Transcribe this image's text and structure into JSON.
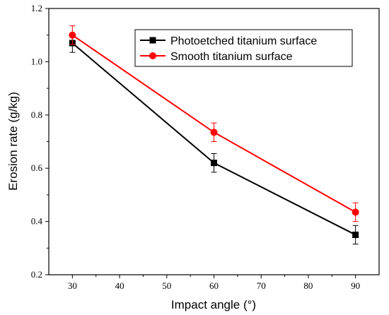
{
  "chart_data": {
    "type": "line",
    "xlabel": "Impact angle (°)",
    "ylabel": "Erosion rate (g/kg)",
    "xlim": [
      25,
      95
    ],
    "ylim": [
      0.2,
      1.2
    ],
    "x_ticks": [
      30,
      40,
      50,
      60,
      70,
      80,
      90
    ],
    "y_ticks": [
      0.2,
      0.4,
      0.6,
      0.8,
      1.0,
      1.2
    ],
    "y_tick_labels": [
      "0.2",
      "0.4",
      "0.6",
      "0.8",
      "1.0",
      "1.2"
    ],
    "grid": false,
    "legend_position": "top-right",
    "series": [
      {
        "name": "Photoetched titanium surface",
        "color": "#000000",
        "marker": "square",
        "x": [
          30,
          60,
          90
        ],
        "y": [
          1.07,
          0.62,
          0.35
        ],
        "error": [
          0.035,
          0.035,
          0.035
        ]
      },
      {
        "name": "Smooth titanium surface",
        "color": "#ff0000",
        "marker": "circle",
        "x": [
          30,
          60,
          90
        ],
        "y": [
          1.1,
          0.735,
          0.435
        ],
        "error": [
          0.035,
          0.035,
          0.035
        ]
      }
    ]
  }
}
